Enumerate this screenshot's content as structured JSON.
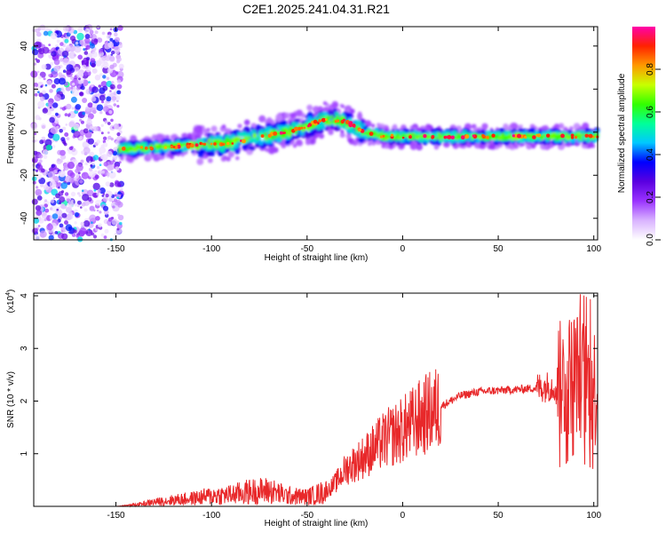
{
  "title": "C2E1.2025.241.04.31.R21",
  "chart_data": [
    {
      "type": "heatmap",
      "xlabel": "Height of straight line (km)",
      "ylabel": "Frequency (Hz)",
      "xlim": [
        -193,
        102
      ],
      "ylim": [
        -50,
        49
      ],
      "x_ticks": [
        -150,
        -100,
        -50,
        0,
        50,
        100
      ],
      "y_ticks": [
        -40,
        -20,
        0,
        20,
        40
      ],
      "colorbar": {
        "label": "Normalized spectral amplitude",
        "range": [
          0,
          1
        ],
        "ticks": [
          0.0,
          0.2,
          0.4,
          0.6,
          0.8
        ],
        "colors": [
          "#ffffff",
          "#d9b3ff",
          "#9a33ff",
          "#5a00e0",
          "#0000ff",
          "#00c8ff",
          "#00ff99",
          "#33ff00",
          "#c8ff00",
          "#ff9900",
          "#ff2200",
          "#ff00aa"
        ]
      },
      "ridge": {
        "x": [
          -148,
          -130,
          -110,
          -90,
          -75,
          -60,
          -50,
          -40,
          -30,
          -20,
          -10,
          0,
          25,
          50,
          75,
          90,
          102
        ],
        "freq": [
          -8,
          -7,
          -6,
          -5,
          -2,
          0,
          3,
          6,
          5,
          0,
          -2,
          -2,
          -2,
          -2,
          -2,
          -2,
          -2
        ]
      },
      "noise_region_x": [
        -193,
        -147
      ]
    },
    {
      "type": "line",
      "xlabel": "Height of straight line (km)",
      "ylabel": "SNR (10 * v/v)",
      "multiplier": "(x10",
      "multiplier_exp": "4",
      "multiplier_close": ")",
      "xlim": [
        -193,
        102
      ],
      "ylim": [
        0,
        4.05
      ],
      "x_ticks": [
        -150,
        -100,
        -50,
        0,
        50,
        100
      ],
      "y_ticks": [
        1,
        2,
        3,
        4
      ],
      "color": "#e8282a",
      "series": [
        {
          "name": "SNR",
          "x": [
            -193,
            -150,
            -140,
            -130,
            -120,
            -110,
            -100,
            -90,
            -80,
            -70,
            -60,
            -50,
            -40,
            -35,
            -30,
            -20,
            -10,
            0,
            10,
            20,
            30,
            40,
            50,
            60,
            70,
            80,
            85,
            90,
            95,
            100,
            102
          ],
          "values": [
            0.0,
            0.0,
            0.03,
            0.08,
            0.12,
            0.15,
            0.2,
            0.22,
            0.28,
            0.3,
            0.2,
            0.18,
            0.28,
            0.45,
            0.7,
            0.95,
            1.25,
            1.45,
            1.7,
            1.9,
            2.1,
            2.18,
            2.2,
            2.22,
            2.25,
            2.3,
            2.4,
            2.6,
            2.4,
            2.3,
            2.2
          ]
        }
      ]
    }
  ]
}
